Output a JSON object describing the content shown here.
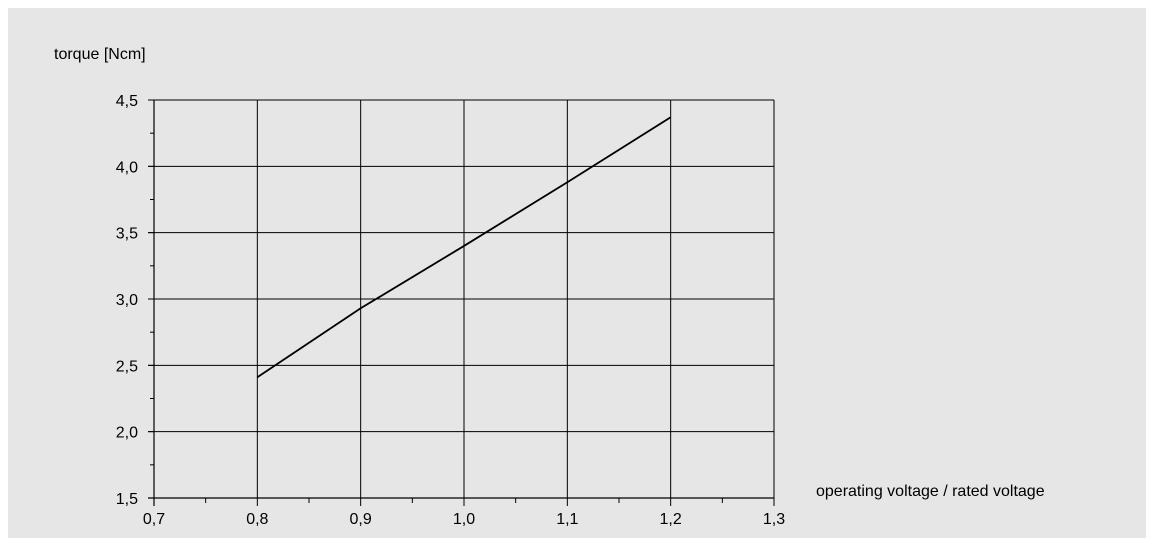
{
  "chart_data": {
    "type": "line",
    "ylabel": "torque [Ncm]",
    "xlabel": "operating voltage / rated voltage",
    "xlim": [
      0.7,
      1.3
    ],
    "ylim": [
      1.5,
      4.5
    ],
    "x_ticks": [
      "0,7",
      "0,8",
      "0,9",
      "1,0",
      "1,1",
      "1,2",
      "1,3"
    ],
    "y_ticks": [
      "1,5",
      "2,0",
      "2,5",
      "3,0",
      "3,5",
      "4,0",
      "4,5"
    ],
    "grid": true,
    "legend": "none",
    "series": [
      {
        "x": [
          0.8,
          0.9,
          1.0,
          1.1,
          1.2
        ],
        "y": [
          2.41,
          2.93,
          3.4,
          3.88,
          4.37
        ]
      }
    ],
    "colors": {
      "background": "#e6e6e6",
      "line": "#000000",
      "grid": "#000000"
    }
  }
}
